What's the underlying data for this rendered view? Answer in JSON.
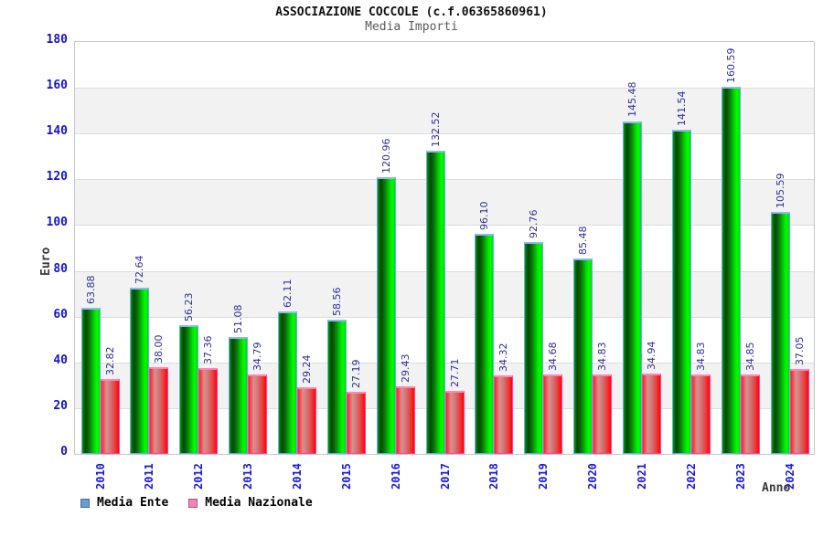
{
  "header": {
    "title": "ASSOCIAZIONE COCCOLE (c.f.06365860961)",
    "subtitle": "Media Importi"
  },
  "axes": {
    "ylabel": "Euro",
    "xlabel": "Anno"
  },
  "legend": {
    "items": [
      {
        "label": "Media Ente",
        "swatch": "#6b9bd2",
        "swatch_border": "#44719e"
      },
      {
        "label": "Media Nazionale",
        "swatch": "#ee85b5",
        "swatch_border": "#b95083"
      }
    ]
  },
  "palette": {
    "bar_ente_main": "#00cc00",
    "bar_ente_border": "#6fa8f5",
    "bar_naz_main": "#ff1a1a",
    "bar_naz_border": "#ff3fa0",
    "tick_text": "#1414cc",
    "value_text": "#2e2e99",
    "band_gray": "#f2f2f2"
  },
  "chart_data": {
    "type": "bar",
    "title": "ASSOCIAZIONE COCCOLE (c.f.06365860961)",
    "subtitle": "Media Importi",
    "xlabel": "Anno",
    "ylabel": "Euro",
    "ylim": [
      0,
      180
    ],
    "ytick_step": 20,
    "grid": true,
    "legend_position": "bottom-left",
    "categories": [
      "2010",
      "2011",
      "2012",
      "2013",
      "2014",
      "2015",
      "2016",
      "2017",
      "2018",
      "2019",
      "2020",
      "2021",
      "2022",
      "2023",
      "2024"
    ],
    "series": [
      {
        "name": "Media Ente",
        "values": [
          63.88,
          72.64,
          56.23,
          51.08,
          62.11,
          58.56,
          120.96,
          132.52,
          96.1,
          92.76,
          85.48,
          145.48,
          141.54,
          160.59,
          105.59
        ],
        "labels": [
          "63.88",
          "72.64",
          "56.23",
          "51.08",
          "62.11",
          "58.56",
          "120.96",
          "132.52",
          "96.10",
          "92.76",
          "85.48",
          "145.48",
          "141.54",
          "160.59",
          "105.59"
        ]
      },
      {
        "name": "Media Nazionale",
        "values": [
          32.82,
          38.0,
          37.36,
          34.79,
          29.24,
          27.19,
          29.43,
          27.71,
          34.32,
          34.68,
          34.83,
          34.94,
          34.83,
          34.85,
          37.05
        ],
        "labels": [
          "32.82",
          "38.00",
          "37.36",
          "34.79",
          "29.24",
          "27.19",
          "29.43",
          "27.71",
          "34.32",
          "34.68",
          "34.83",
          "34.94",
          "34.83",
          "34.85",
          "37.05"
        ]
      }
    ]
  }
}
